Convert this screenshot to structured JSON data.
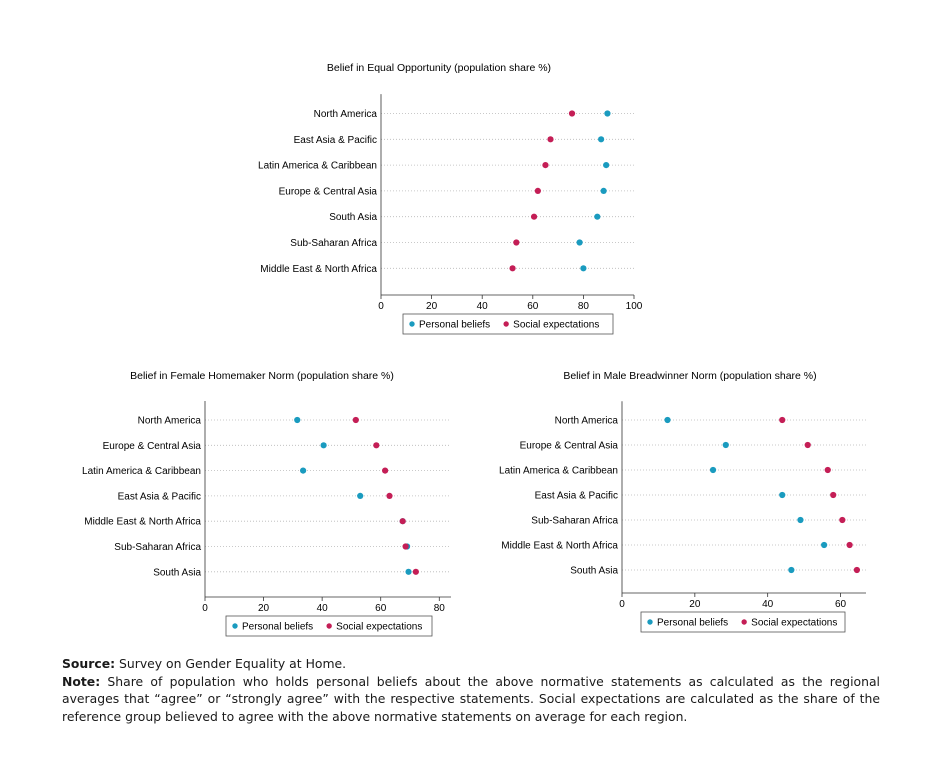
{
  "chart_data": [
    {
      "type": "scatter",
      "title": "Belief in Equal Opportunity (population share %)",
      "categories": [
        "North America",
        "East Asia & Pacific",
        "Latin America & Caribbean",
        "Europe & Central Asia",
        "South Asia",
        "Sub-Saharan Africa",
        "Middle East & North Africa"
      ],
      "xlim": [
        0,
        100
      ],
      "xticks": [
        0,
        20,
        40,
        60,
        80,
        100
      ],
      "series": [
        {
          "name": "Personal beliefs",
          "color": "#1a9bbf",
          "values": [
            89.5,
            87,
            89,
            88,
            85.5,
            78.5,
            80
          ]
        },
        {
          "name": "Social expectations",
          "color": "#c41e56",
          "values": [
            75.5,
            67,
            65,
            62,
            60.5,
            53.5,
            52
          ]
        }
      ],
      "legend": "bottom"
    },
    {
      "type": "scatter",
      "title": "Belief in Female Homemaker Norm (population share %)",
      "categories": [
        "North America",
        "Europe & Central Asia",
        "Latin America & Caribbean",
        "East Asia & Pacific",
        "Middle East & North Africa",
        "Sub-Saharan Africa",
        "South Asia"
      ],
      "xlim": [
        0,
        84
      ],
      "xticks": [
        0,
        20,
        40,
        60,
        80
      ],
      "series": [
        {
          "name": "Personal beliefs",
          "color": "#1a9bbf",
          "values": [
            31.5,
            40.5,
            33.5,
            53,
            67.5,
            69,
            69.5
          ]
        },
        {
          "name": "Social expectations",
          "color": "#c41e56",
          "values": [
            51.5,
            58.5,
            61.5,
            63,
            67.5,
            68.5,
            72
          ]
        }
      ],
      "legend": "bottom"
    },
    {
      "type": "scatter",
      "title": "Belief in Male Breadwinner Norm (population share %)",
      "categories": [
        "North America",
        "Europe & Central Asia",
        "Latin America & Caribbean",
        "East Asia & Pacific",
        "Sub-Saharan Africa",
        "Middle East & North Africa",
        "South Asia"
      ],
      "xlim": [
        0,
        67
      ],
      "xticks": [
        0,
        20,
        40,
        60
      ],
      "series": [
        {
          "name": "Personal beliefs",
          "color": "#1a9bbf",
          "values": [
            12.5,
            28.5,
            25,
            44,
            49,
            55.5,
            46.5
          ]
        },
        {
          "name": "Social expectations",
          "color": "#c41e56",
          "values": [
            44,
            51,
            56.5,
            58,
            60.5,
            62.5,
            64.5
          ]
        }
      ],
      "legend": "bottom"
    }
  ],
  "footer": {
    "source_label": "Source:",
    "source_text": " Survey on Gender Equality at Home.",
    "note_label": "Note:",
    "note_text": " Share of population who holds personal beliefs about the above normative statements as calculated as the regional averages that “agree” or “strongly agree” with the respective statements. Social expectations are calculated as the share of the reference group believed to agree with the above normative statements on average for each region."
  }
}
